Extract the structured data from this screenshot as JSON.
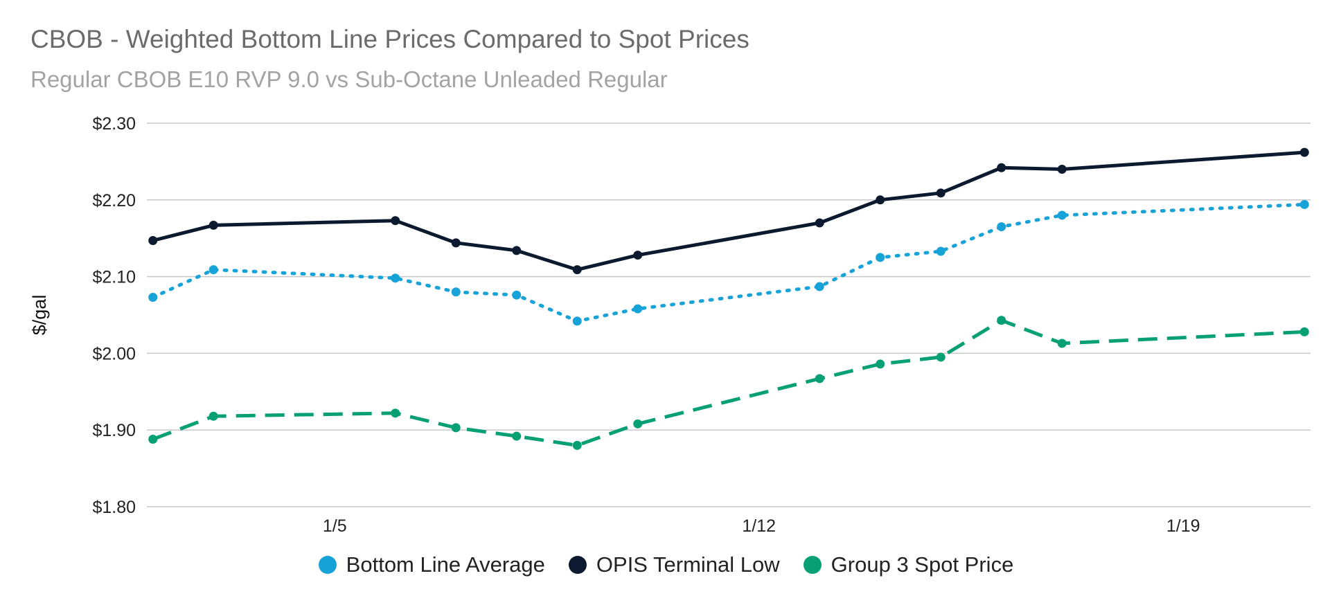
{
  "chart_data": {
    "type": "line",
    "title": "CBOB - Weighted Bottom Line Prices Compared to Spot Prices",
    "subtitle": "Regular CBOB E10 RVP 9.0 vs Sub-Octane Unleaded Regular",
    "xlabel": "",
    "ylabel": "$/gal",
    "ylim": [
      1.8,
      2.3
    ],
    "yticks": [
      1.8,
      1.9,
      2.0,
      2.1,
      2.2,
      2.3
    ],
    "ytick_labels": [
      "$1.80",
      "$1.90",
      "$2.00",
      "$2.10",
      "$2.20",
      "$2.30"
    ],
    "xlim": [
      1.9,
      21.1
    ],
    "xticks": [
      5,
      12,
      19
    ],
    "xtick_labels": [
      "1/5",
      "1/12",
      "1/19"
    ],
    "x": [
      2,
      3,
      6,
      7,
      8,
      9,
      10,
      13,
      14,
      15,
      16,
      17,
      21
    ],
    "grid": true,
    "legend_position": "bottom",
    "series": [
      {
        "name": "OPIS Terminal Low",
        "color": "#0b1a2e",
        "style": "solid",
        "values": [
          2.147,
          2.167,
          2.173,
          2.144,
          2.134,
          2.109,
          2.128,
          2.17,
          2.2,
          2.209,
          2.242,
          2.24,
          2.262
        ]
      },
      {
        "name": "Bottom Line Average",
        "color": "#17a2d8",
        "style": "dotted",
        "values": [
          2.073,
          2.109,
          2.098,
          2.08,
          2.076,
          2.042,
          2.058,
          2.087,
          2.125,
          2.133,
          2.165,
          2.18,
          2.194
        ]
      },
      {
        "name": "Group 3 Spot Price",
        "color": "#07a075",
        "style": "dashed",
        "values": [
          1.888,
          1.918,
          1.922,
          1.903,
          1.892,
          1.88,
          1.908,
          1.967,
          1.986,
          1.995,
          2.043,
          2.013,
          2.028
        ]
      }
    ],
    "legend": [
      "Bottom Line Average",
      "OPIS Terminal Low",
      "Group 3 Spot Price"
    ]
  },
  "colors": {
    "grid": "#c8c8c8",
    "title": "#6b6b6b",
    "subtitle": "#a3a3a3"
  }
}
